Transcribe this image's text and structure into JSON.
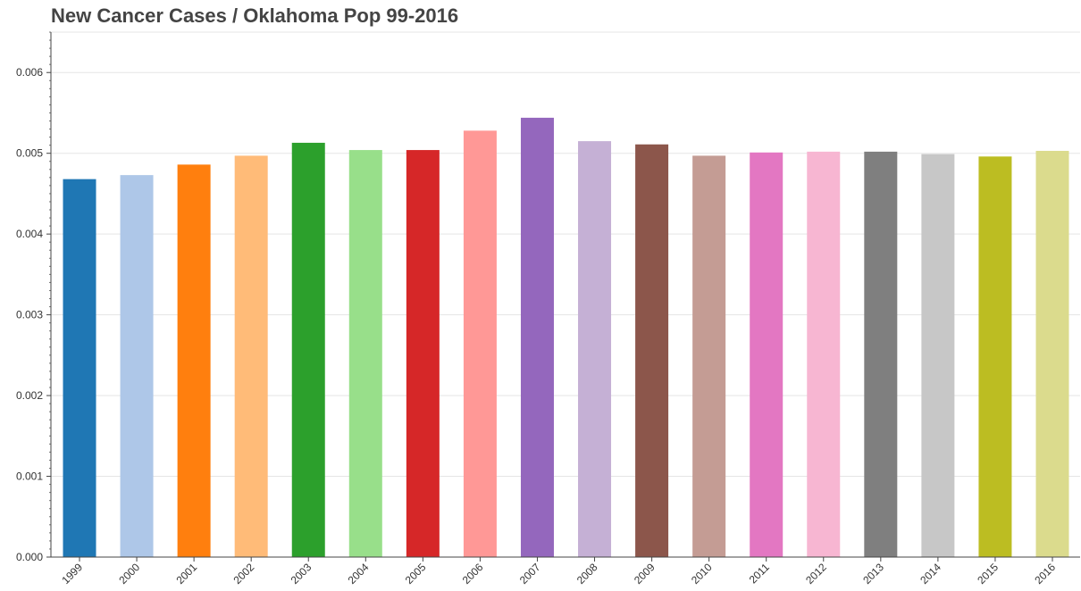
{
  "chart_data": {
    "type": "bar",
    "title": "New Cancer Cases / Oklahoma Pop 99-2016",
    "xlabel": "",
    "ylabel": "",
    "categories": [
      "1999",
      "2000",
      "2001",
      "2002",
      "2003",
      "2004",
      "2005",
      "2006",
      "2007",
      "2008",
      "2009",
      "2010",
      "2011",
      "2012",
      "2013",
      "2014",
      "2015",
      "2016"
    ],
    "values": [
      0.00468,
      0.00473,
      0.00486,
      0.00497,
      0.00513,
      0.00504,
      0.00504,
      0.00528,
      0.00544,
      0.00515,
      0.00511,
      0.00497,
      0.00501,
      0.00502,
      0.00502,
      0.00499,
      0.00496,
      0.00503
    ],
    "colors": [
      "#1f77b4",
      "#aec7e8",
      "#ff7f0e",
      "#ffbb78",
      "#2ca02c",
      "#98df8a",
      "#d62728",
      "#ff9896",
      "#9467bd",
      "#c5b0d5",
      "#8c564b",
      "#c49c94",
      "#e377c2",
      "#f7b6d2",
      "#7f7f7f",
      "#c7c7c7",
      "#bcbd22",
      "#dbdb8d"
    ],
    "ylim": [
      0,
      0.0065
    ],
    "yticks": [
      "0.000",
      "0.001",
      "0.002",
      "0.003",
      "0.004",
      "0.005",
      "0.006"
    ],
    "grid": true,
    "legend": false
  }
}
